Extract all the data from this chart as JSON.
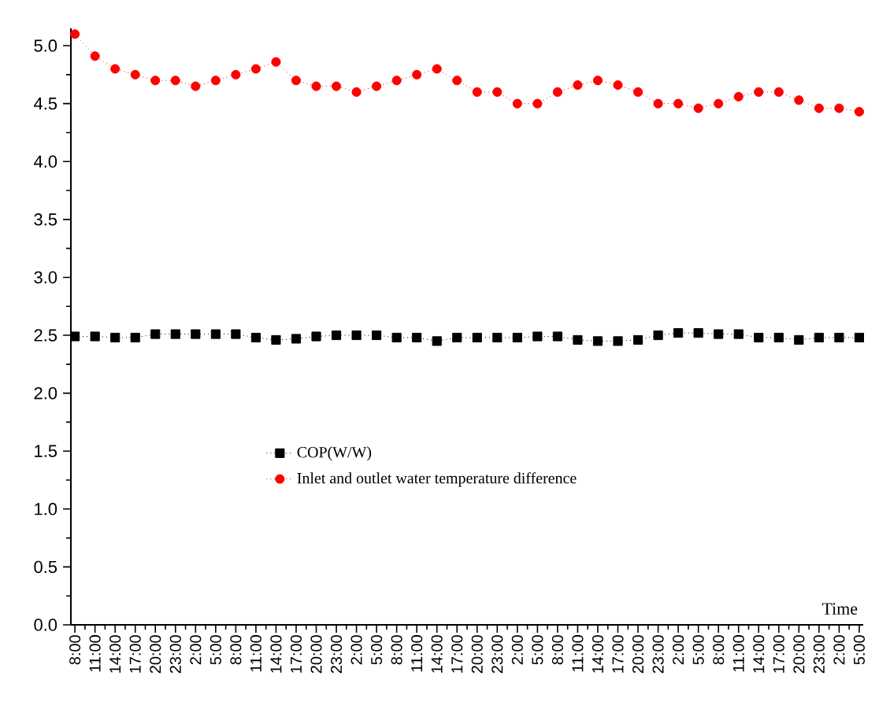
{
  "chart_data": {
    "type": "line",
    "xlabel": "Time",
    "categories": [
      "8:00",
      "11:00",
      "14:00",
      "17:00",
      "20:00",
      "23:00",
      "2:00",
      "5:00",
      "8:00",
      "11:00",
      "14:00",
      "17:00",
      "20:00",
      "23:00",
      "2:00",
      "5:00",
      "8:00",
      "11:00",
      "14:00",
      "17:00",
      "20:00",
      "23:00",
      "2:00",
      "5:00",
      "8:00",
      "11:00",
      "14:00",
      "17:00",
      "20:00",
      "23:00",
      "2:00",
      "5:00",
      "8:00",
      "11:00",
      "14:00",
      "17:00",
      "20:00",
      "23:00",
      "2:00",
      "5:00"
    ],
    "series": [
      {
        "name": "COP(W/W)",
        "color": "#000000",
        "marker": "square",
        "values": [
          2.49,
          2.49,
          2.48,
          2.48,
          2.51,
          2.51,
          2.51,
          2.51,
          2.51,
          2.48,
          2.46,
          2.47,
          2.49,
          2.5,
          2.5,
          2.5,
          2.48,
          2.48,
          2.45,
          2.48,
          2.48,
          2.48,
          2.48,
          2.49,
          2.49,
          2.46,
          2.45,
          2.45,
          2.46,
          2.5,
          2.52,
          2.52,
          2.51,
          2.51,
          2.48,
          2.48,
          2.46,
          2.48,
          2.48,
          2.48
        ]
      },
      {
        "name": "Inlet and outlet water temperature difference",
        "color": "#ff0000",
        "marker": "circle",
        "values": [
          5.1,
          4.91,
          4.8,
          4.75,
          4.7,
          4.7,
          4.65,
          4.7,
          4.75,
          4.8,
          4.86,
          4.7,
          4.65,
          4.65,
          4.6,
          4.65,
          4.7,
          4.75,
          4.8,
          4.7,
          4.6,
          4.6,
          4.5,
          4.5,
          4.6,
          4.66,
          4.7,
          4.66,
          4.6,
          4.5,
          4.5,
          4.46,
          4.5,
          4.56,
          4.6,
          4.6,
          4.53,
          4.46,
          4.46,
          4.43
        ]
      }
    ],
    "ylim": [
      0,
      5.15
    ],
    "yticks": [
      {
        "value": 0,
        "label": "0.0"
      },
      0.5,
      {
        "value": 1,
        "label": "1.0"
      },
      1.5,
      {
        "value": 2,
        "label": "2.0"
      },
      2.5,
      {
        "value": 3,
        "label": "3.0"
      },
      3.5,
      {
        "value": 4,
        "label": "4.0"
      },
      4.5,
      {
        "value": 5,
        "label": "5.0"
      }
    ],
    "line_style": "dotted",
    "grid": false,
    "legend": "left"
  }
}
